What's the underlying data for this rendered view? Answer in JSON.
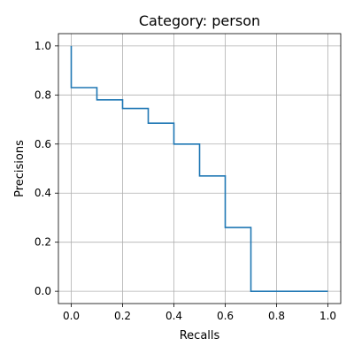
{
  "chart_data": {
    "type": "line",
    "title": "Category: person",
    "xlabel": "Recalls",
    "ylabel": "Precisions",
    "xlim": [
      -0.05,
      1.05
    ],
    "ylim": [
      -0.05,
      1.05
    ],
    "xticks": [
      0.0,
      0.2,
      0.4,
      0.6,
      0.8,
      1.0
    ],
    "yticks": [
      0.0,
      0.2,
      0.4,
      0.6,
      0.8,
      1.0
    ],
    "xtick_labels": [
      "0.0",
      "0.2",
      "0.4",
      "0.6",
      "0.8",
      "1.0"
    ],
    "ytick_labels": [
      "0.0",
      "0.2",
      "0.4",
      "0.6",
      "0.8",
      "1.0"
    ],
    "grid": true,
    "series": [
      {
        "color": "#1f77b4",
        "x": [
          0.0,
          0.0,
          0.1,
          0.1,
          0.2,
          0.2,
          0.3,
          0.3,
          0.4,
          0.4,
          0.5,
          0.5,
          0.6,
          0.6,
          0.7,
          0.7,
          0.8,
          0.9,
          1.0
        ],
        "y": [
          1.0,
          0.83,
          0.83,
          0.78,
          0.78,
          0.745,
          0.745,
          0.685,
          0.685,
          0.6,
          0.6,
          0.47,
          0.47,
          0.26,
          0.26,
          0.0,
          0.0,
          0.0,
          0.0
        ]
      }
    ]
  }
}
